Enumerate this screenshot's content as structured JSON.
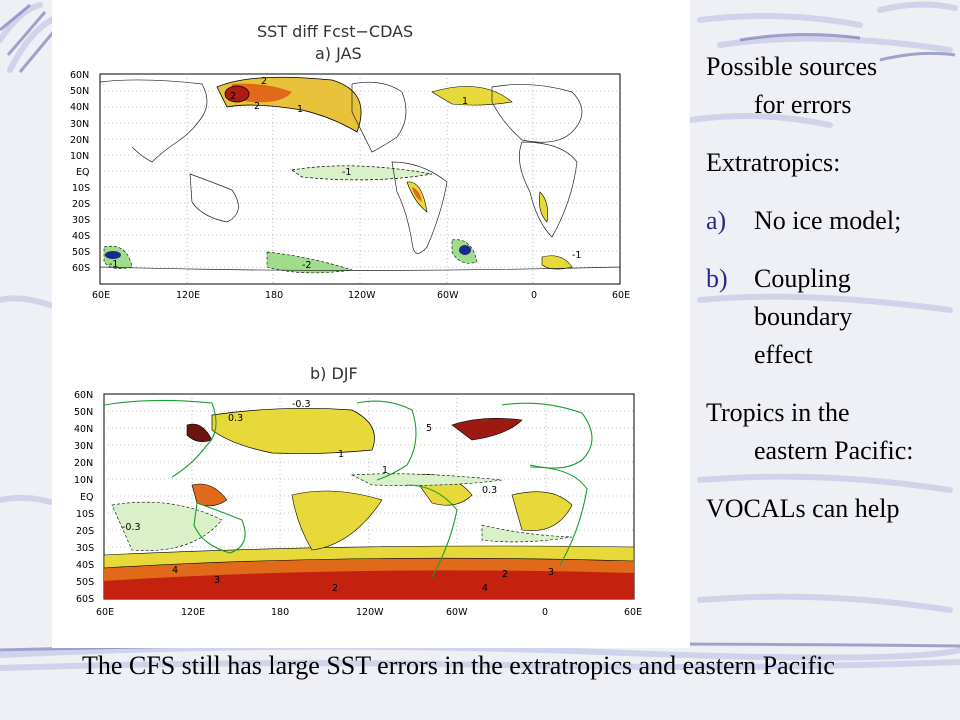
{
  "slide": {
    "map_a_title": "SST diff Fcst−CDAS",
    "map_a_subtitle": "a) JAS",
    "map_b_title": "b)  DJF",
    "lat_labels": [
      "60N",
      "50N",
      "40N",
      "30N",
      "20N",
      "10N",
      "EQ",
      "10S",
      "20S",
      "30S",
      "40S",
      "50S",
      "60S"
    ],
    "lon_labels": [
      "60E",
      "120E",
      "180",
      "120W",
      "60W",
      "0",
      "60E"
    ],
    "side_text": {
      "heading": "Possible sources",
      "heading_cont": "for errors",
      "extratropics": "Extratropics:",
      "item_a_marker": "a)",
      "item_a": "No ice model;",
      "item_b_marker": "b)",
      "item_b_line1": "Coupling",
      "item_b_line2": "boundary",
      "item_b_line3": "effect",
      "tropics": "Tropics in the",
      "tropics_cont": "eastern Pacific:",
      "vocals": "VOCALs can help"
    },
    "bottom_text": "The CFS still has large SST errors in the extratropics and eastern Pacific",
    "contour_labels_a": [
      "2",
      "2",
      "1",
      "1",
      "-1",
      "-2",
      "-1",
      "-1",
      "2"
    ],
    "contour_labels_b": [
      "0.3",
      "-0.3",
      "1",
      "5",
      "3",
      "4",
      "2",
      "-0.3",
      "1",
      "0.3",
      "2",
      "4",
      "3"
    ]
  }
}
